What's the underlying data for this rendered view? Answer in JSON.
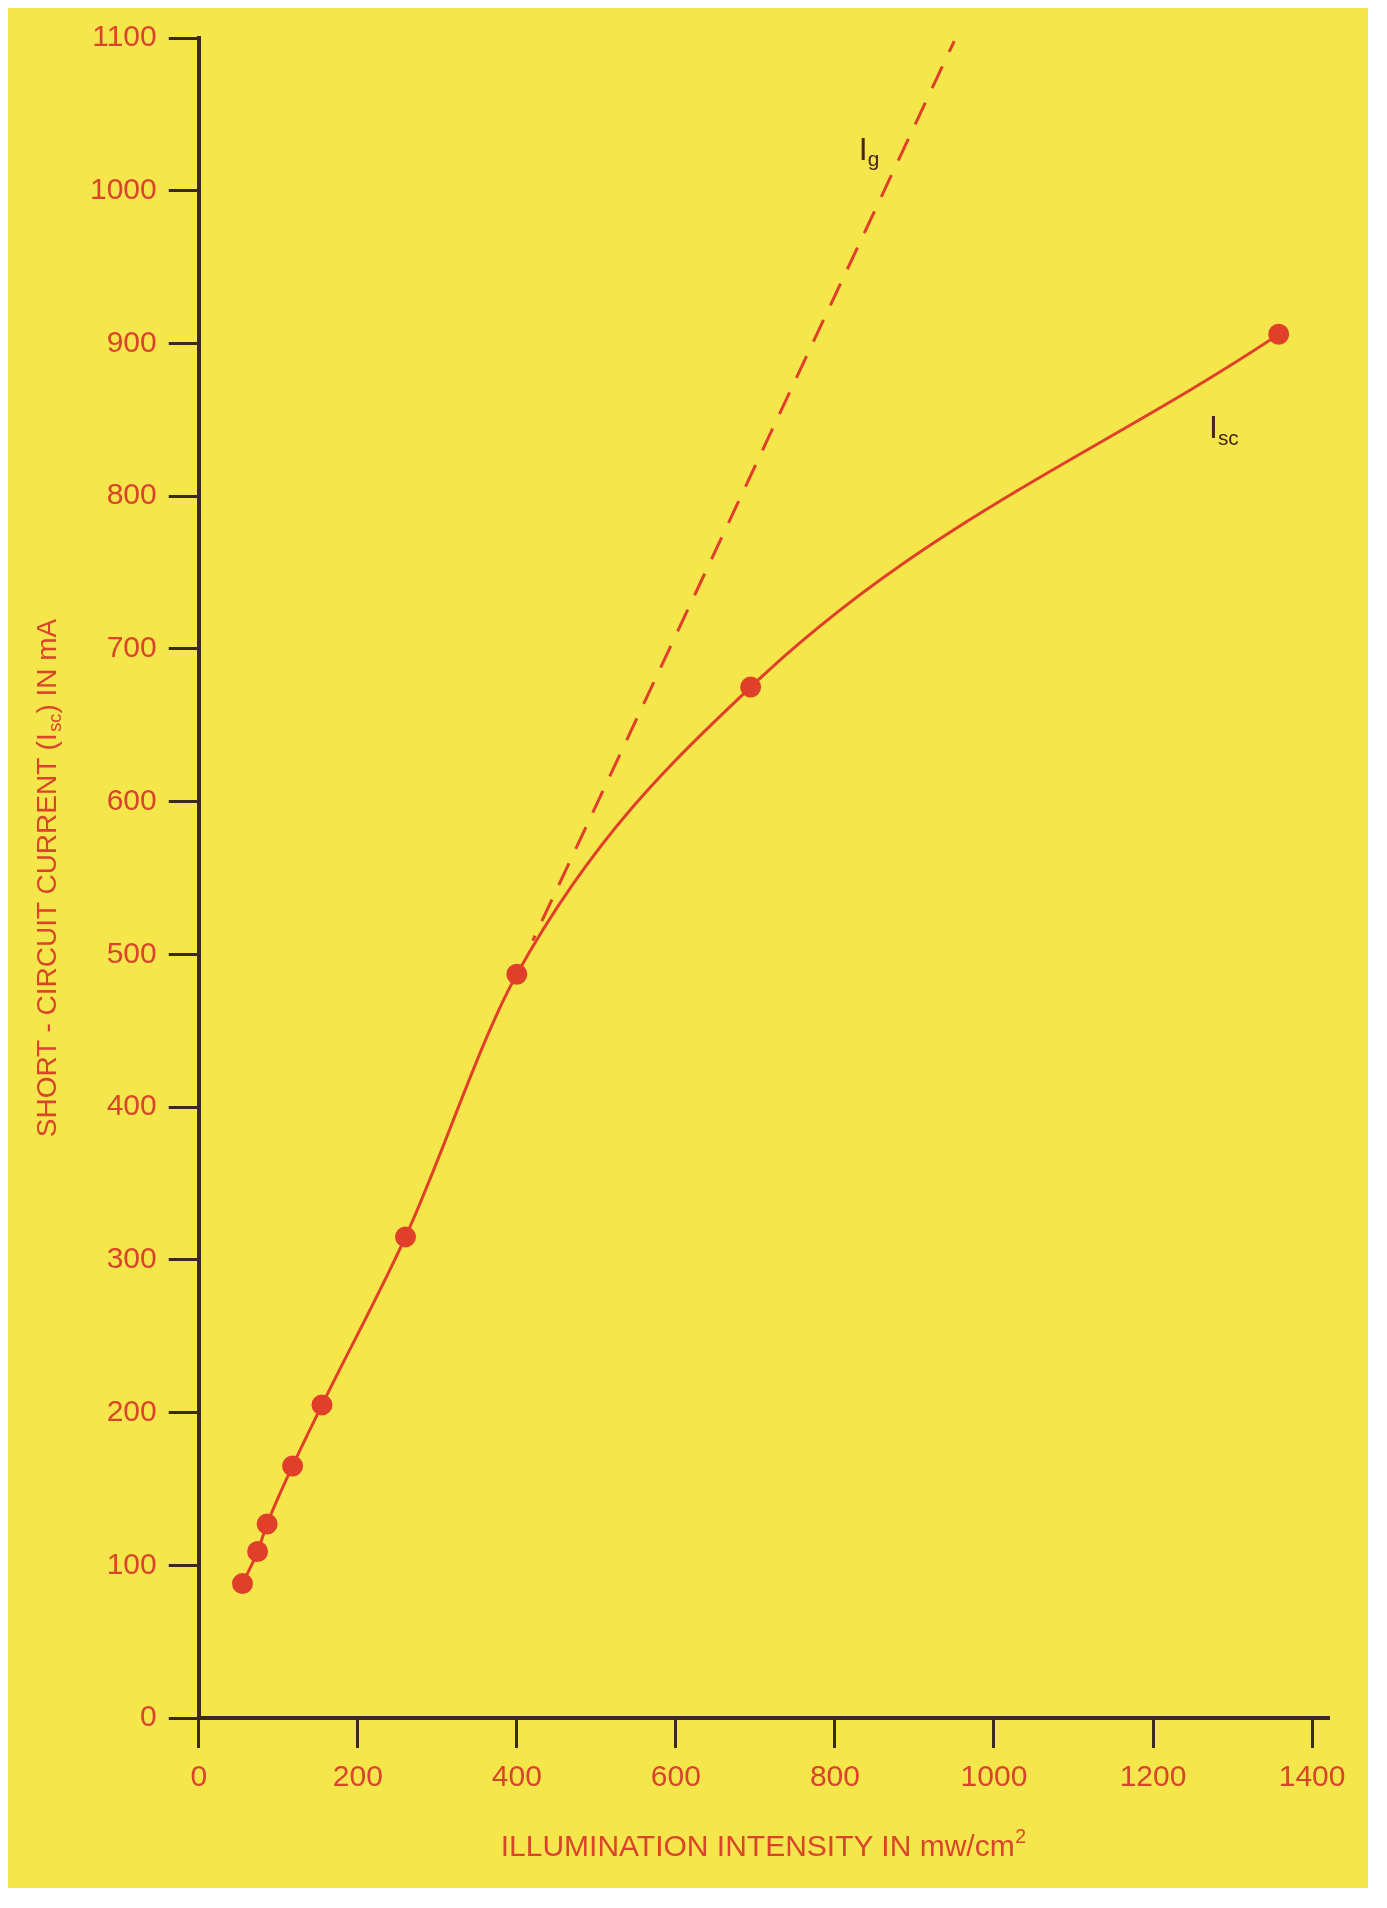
{
  "chart_data": {
    "type": "line",
    "xlabel": "ILLUMINATION INTENSITY IN mw/cm$^{2}$",
    "ylabel": "SHORT - CIRCUIT CURRENT (I$_{sc}$) IN mA",
    "xlim": [
      0,
      1420
    ],
    "ylim": [
      0,
      1100
    ],
    "xticks": [
      0,
      200,
      400,
      600,
      800,
      1000,
      1200,
      1400
    ],
    "yticks": [
      0,
      100,
      200,
      300,
      400,
      500,
      600,
      700,
      800,
      900,
      1000,
      1100
    ],
    "grid": false,
    "legend": false,
    "series": [
      {
        "name": "I$_{sc}$",
        "color": "#e0402a",
        "marker": "circle",
        "line_style": "solid",
        "x": [
          55,
          74,
          86,
          118,
          155,
          260,
          400,
          694,
          1358
        ],
        "values": [
          88,
          109,
          127,
          165,
          205,
          315,
          487,
          675,
          906
        ]
      },
      {
        "name": "I$_{g}$",
        "color": "#e0402a",
        "marker": "none",
        "line_style": "dashed",
        "x": [
          420,
          950
        ],
        "values": [
          509,
          1098
        ]
      }
    ]
  }
}
